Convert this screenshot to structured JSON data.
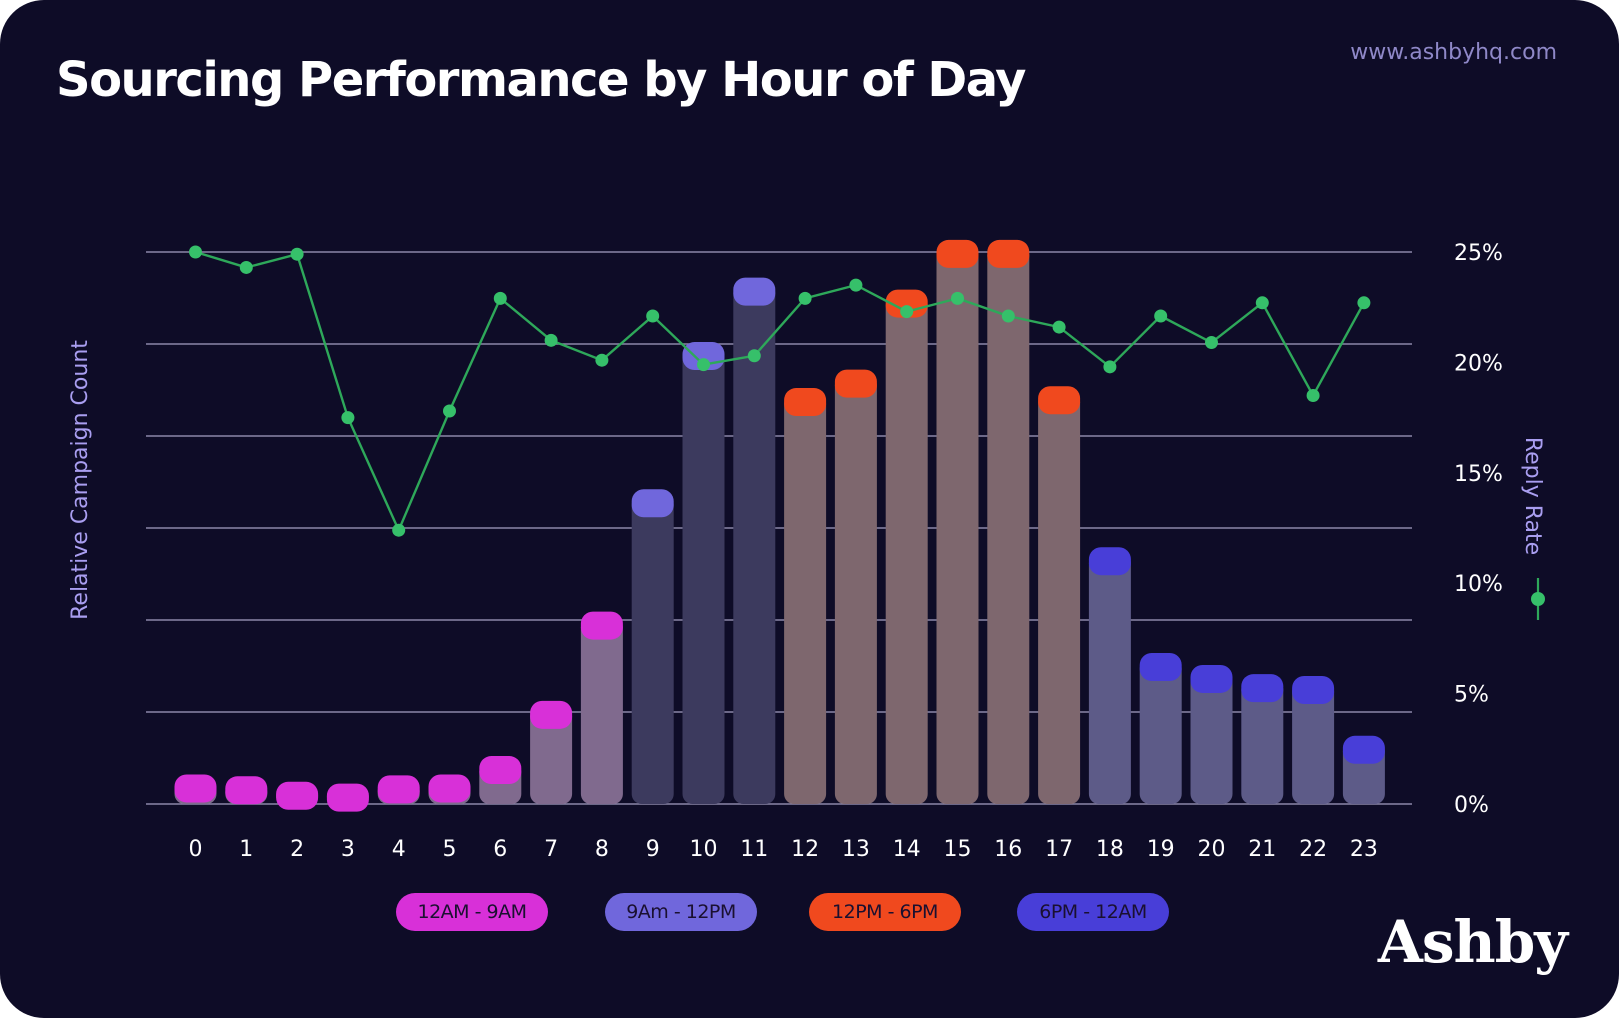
{
  "header": {
    "title": "Sourcing Performance by Hour of Day",
    "url": "www.ashbyhq.com",
    "brand": "Ashby"
  },
  "colors": {
    "background": "#0e0c27",
    "gridline": "#8b87a8",
    "reply_line": "#2ea85a",
    "reply_dot": "#36c06a",
    "groups": {
      "12AM - 9AM": {
        "cap": "#d830d8",
        "bar": "#806a8e"
      },
      "9Am - 12PM": {
        "cap": "#7067dc",
        "bar": "#3c3a5e"
      },
      "12PM - 6PM": {
        "cap": "#f0491e",
        "bar": "#7e676e"
      },
      "6PM - 12AM": {
        "cap": "#483ed8",
        "bar": "#5d5b88"
      }
    }
  },
  "legend": [
    {
      "label": "12AM - 9AM",
      "color": "#d830d8"
    },
    {
      "label": "9Am - 12PM",
      "color": "#7067dc"
    },
    {
      "label": "12PM - 6PM",
      "color": "#f0491e"
    },
    {
      "label": "6PM - 12AM",
      "color": "#483ed8"
    }
  ],
  "chart_data": {
    "type": "bar",
    "title": "Sourcing Performance by Hour of Day",
    "xlabel": "",
    "ylabel_left": "Relative Campaign Count",
    "ylabel_right": "Reply Rate",
    "categories": [
      "0",
      "1",
      "2",
      "3",
      "4",
      "5",
      "6",
      "7",
      "8",
      "9",
      "10",
      "11",
      "12",
      "13",
      "14",
      "15",
      "16",
      "17",
      "18",
      "19",
      "20",
      "21",
      "22",
      "23"
    ],
    "left_axis": {
      "ylim": [
        0,
        6
      ],
      "tick_labels_shown": false,
      "gridlines": [
        0,
        1,
        2,
        3,
        4,
        5,
        6
      ]
    },
    "right_axis": {
      "ylim": [
        0,
        25
      ],
      "ticks": [
        "0%",
        "5%",
        "10%",
        "15%",
        "20%",
        "25%"
      ]
    },
    "group_of_hour": [
      "12AM - 9AM",
      "12AM - 9AM",
      "12AM - 9AM",
      "12AM - 9AM",
      "12AM - 9AM",
      "12AM - 9AM",
      "12AM - 9AM",
      "12AM - 9AM",
      "12AM - 9AM",
      "9Am - 12PM",
      "9Am - 12PM",
      "9Am - 12PM",
      "12PM - 6PM",
      "12PM - 6PM",
      "12PM - 6PM",
      "12PM - 6PM",
      "12PM - 6PM",
      "12PM - 6PM",
      "6PM - 12AM",
      "6PM - 12AM",
      "6PM - 12AM",
      "6PM - 12AM",
      "6PM - 12AM",
      "6PM - 12AM"
    ],
    "series": [
      {
        "kind": "bar",
        "axis": "left",
        "values": [
          0.18,
          0.16,
          0.1,
          0.08,
          0.17,
          0.18,
          0.38,
          0.98,
          1.95,
          3.28,
          4.88,
          5.58,
          4.38,
          4.58,
          5.45,
          5.99,
          5.99,
          4.4,
          2.65,
          1.5,
          1.37,
          1.27,
          1.25,
          0.6
        ]
      },
      {
        "kind": "line",
        "name": "Reply Rate",
        "axis": "right",
        "values": [
          25.0,
          24.3,
          24.9,
          17.5,
          12.4,
          17.8,
          22.9,
          21.0,
          20.1,
          22.1,
          19.9,
          20.3,
          22.9,
          23.5,
          22.3,
          22.9,
          22.1,
          21.6,
          19.8,
          22.1,
          20.9,
          22.7,
          18.5,
          22.7
        ]
      }
    ]
  }
}
